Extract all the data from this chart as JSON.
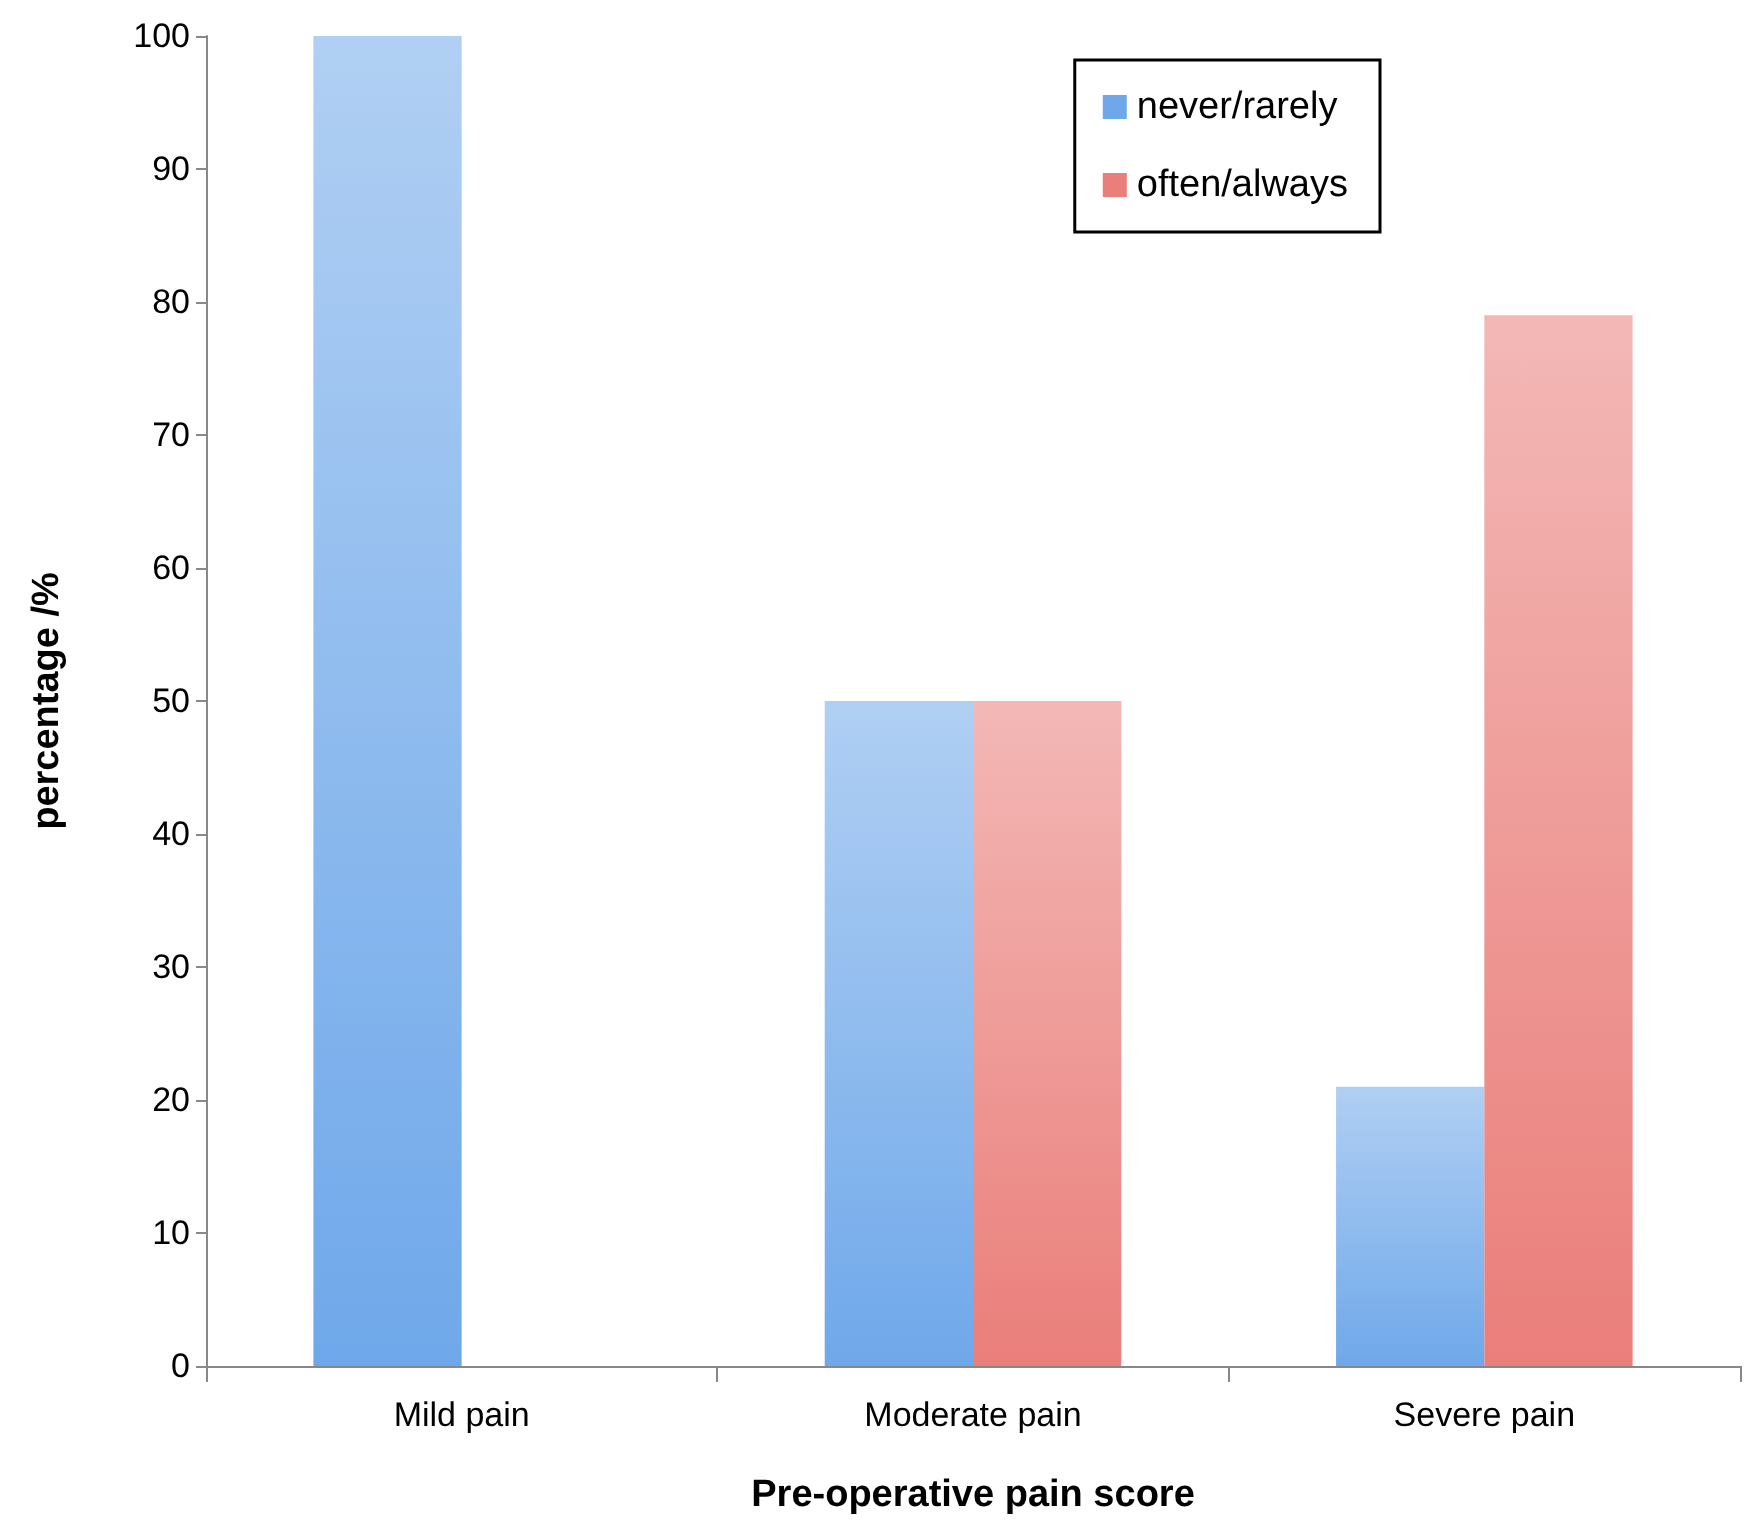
{
  "chart_data": {
    "type": "bar",
    "xlabel": "Pre-operative pain score",
    "ylabel": "percentage /%",
    "categories": [
      "Mild pain",
      "Moderate pain",
      "Severe pain"
    ],
    "series": [
      {
        "name": "never/rarely",
        "color": "#6fa8ea",
        "values": [
          100,
          50,
          21
        ]
      },
      {
        "name": "often/always",
        "color": "#ea7e7a",
        "values": [
          0,
          50,
          79
        ]
      }
    ],
    "ylim": [
      0,
      100
    ],
    "yticks": [
      0,
      10,
      20,
      30,
      40,
      50,
      60,
      70,
      80,
      90,
      100
    ],
    "grid": false,
    "legend": "top right"
  }
}
